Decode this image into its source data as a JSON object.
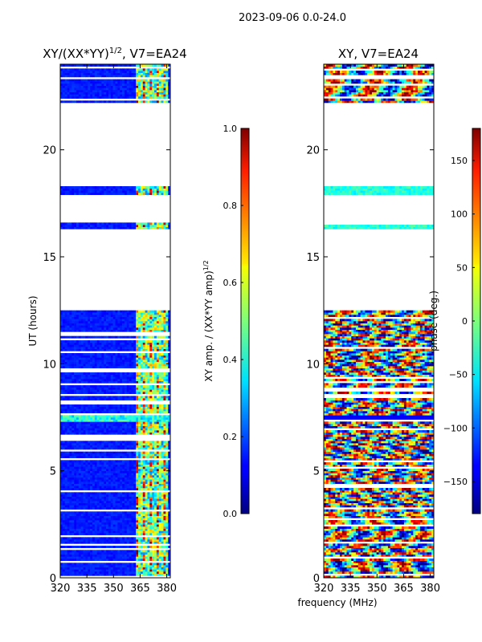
{
  "suptitle": "2023-09-06 0.0-24.0",
  "chart_data": [
    {
      "type": "heatmap",
      "title_main": "XY/(XX*YY)",
      "title_sup": "1/2",
      "title_tail": ", V7=EA24",
      "ylabel": "UT (hours)",
      "xlim": [
        320,
        382
      ],
      "ylim": [
        0,
        24
      ],
      "xticks": [
        320,
        335,
        350,
        365,
        380
      ],
      "yticks": [
        0,
        5,
        10,
        15,
        20
      ],
      "data_present_hours": [
        [
          0,
          12.5
        ],
        [
          16.3,
          16.6
        ],
        [
          17.9,
          18.3
        ],
        [
          22.2,
          24
        ]
      ],
      "colorbar": {
        "label_main": "XY amp. / (XX*YY amp)",
        "label_sup": "1/2",
        "range": [
          0.0,
          1.0
        ],
        "ticks": [
          "0.0",
          "0.2",
          "0.4",
          "0.6",
          "0.8",
          "1.0"
        ],
        "tick_values": [
          0.0,
          0.2,
          0.4,
          0.6,
          0.8,
          1.0
        ]
      }
    },
    {
      "type": "heatmap",
      "title": "XY, V7=EA24",
      "xlabel": "frequency (MHz)",
      "xlim": [
        320,
        382
      ],
      "ylim": [
        0,
        24
      ],
      "xticks": [
        320,
        335,
        350,
        365,
        380
      ],
      "yticks": [
        0,
        5,
        10,
        15,
        20
      ],
      "data_present_hours": [
        [
          0,
          12.5
        ],
        [
          16.3,
          16.6
        ],
        [
          17.9,
          18.3
        ],
        [
          22.2,
          24
        ]
      ],
      "colorbar": {
        "label": "phase (deg.)",
        "range": [
          -180,
          180
        ],
        "ticks": [
          "150",
          "100",
          "50",
          "0",
          "−50",
          "−100",
          "−150"
        ],
        "tick_values": [
          150,
          100,
          50,
          0,
          -50,
          -100,
          -150
        ]
      }
    }
  ]
}
